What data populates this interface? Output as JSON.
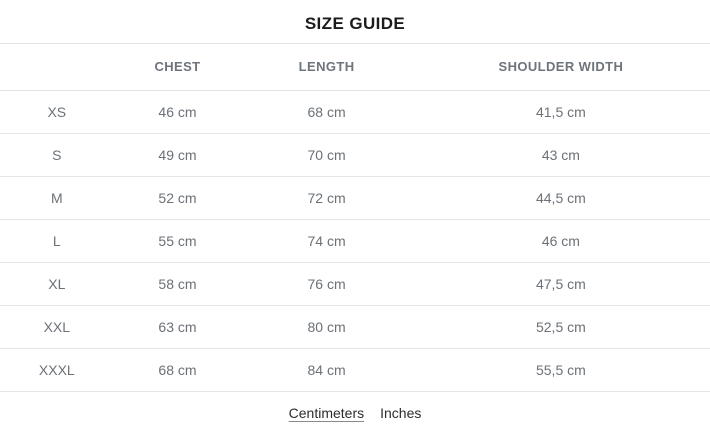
{
  "title": "SIZE GUIDE",
  "table": {
    "headers": {
      "size": "",
      "chest": "CHEST",
      "length": "LENGTH",
      "shoulder": "SHOULDER WIDTH"
    },
    "rows": [
      {
        "size": "XS",
        "chest": "46 cm",
        "length": "68 cm",
        "shoulder": "41,5 cm"
      },
      {
        "size": "S",
        "chest": "49 cm",
        "length": "70 cm",
        "shoulder": "43 cm"
      },
      {
        "size": "M",
        "chest": "52 cm",
        "length": "72 cm",
        "shoulder": "44,5 cm"
      },
      {
        "size": "L",
        "chest": "55 cm",
        "length": "74 cm",
        "shoulder": "46 cm"
      },
      {
        "size": "XL",
        "chest": "58 cm",
        "length": "76 cm",
        "shoulder": "47,5 cm"
      },
      {
        "size": "XXL",
        "chest": "63 cm",
        "length": "80 cm",
        "shoulder": "52,5 cm"
      },
      {
        "size": "XXXL",
        "chest": "68 cm",
        "length": "84 cm",
        "shoulder": "55,5 cm"
      }
    ]
  },
  "unit_toggle": {
    "centimeters_label": "Centimeters",
    "inches_label": "Inches",
    "active_unit": "Centimeters"
  },
  "colors": {
    "title_text": "#1c1c1c",
    "header_text": "#6d747b",
    "cell_text": "#6b7177",
    "divider": "#e6e6e6",
    "background": "#ffffff"
  }
}
